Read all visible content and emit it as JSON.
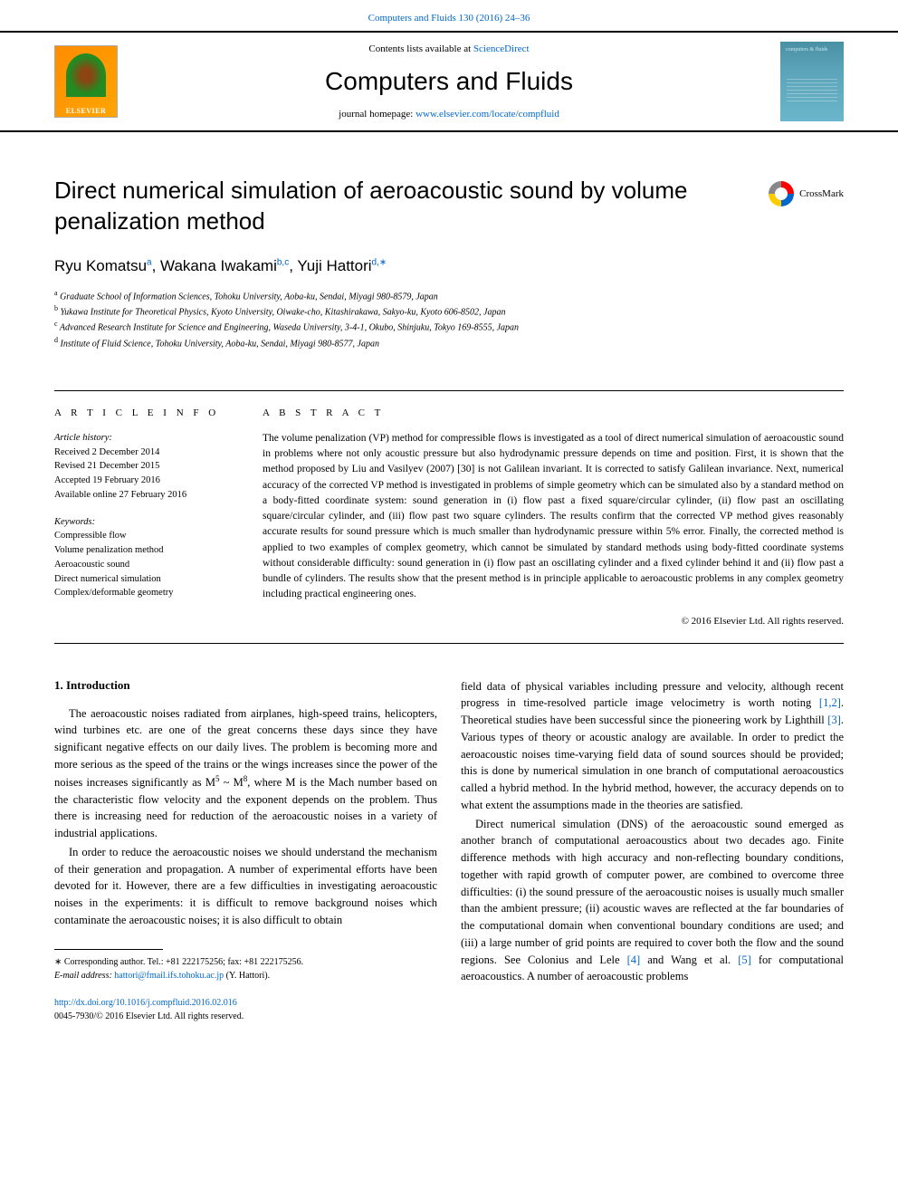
{
  "top_link": "Computers and Fluids 130 (2016) 24–36",
  "banner": {
    "elsevier": "ELSEVIER",
    "contents_prefix": "Contents lists available at ",
    "contents_link": "ScienceDirect",
    "journal_name": "Computers and Fluids",
    "homepage_prefix": "journal homepage: ",
    "homepage_link": "www.elsevier.com/locate/compfluid",
    "cover_text": "computers & fluids"
  },
  "article": {
    "title": "Direct numerical simulation of aeroacoustic sound by volume penalization method",
    "crossmark": "CrossMark",
    "authors_html": "Ryu Komatsu",
    "author1": "Ryu Komatsu",
    "author1_sup": "a",
    "author2": ", Wakana Iwakami",
    "author2_sup": "b,c",
    "author3": ", Yuji Hattori",
    "author3_sup": "d,∗",
    "affiliations": {
      "a": "Graduate School of Information Sciences, Tohoku University, Aoba-ku, Sendai, Miyagi 980-8579, Japan",
      "b": "Yukawa Institute for Theoretical Physics, Kyoto University, Oiwake-cho, Kitashirakawa, Sakyo-ku, Kyoto 606-8502, Japan",
      "c": "Advanced Research Institute for Science and Engineering, Waseda University, 3-4-1, Okubo, Shinjuku, Tokyo 169-8555, Japan",
      "d": "Institute of Fluid Science, Tohoku University, Aoba-ku, Sendai, Miyagi 980-8577, Japan"
    }
  },
  "info": {
    "heading": "A R T I C L E   I N F O",
    "history_label": "Article history:",
    "received": "Received 2 December 2014",
    "revised": "Revised 21 December 2015",
    "accepted": "Accepted 19 February 2016",
    "online": "Available online 27 February 2016",
    "keywords_label": "Keywords:",
    "kw1": "Compressible flow",
    "kw2": "Volume penalization method",
    "kw3": "Aeroacoustic sound",
    "kw4": "Direct numerical simulation",
    "kw5": "Complex/deformable geometry"
  },
  "abstract": {
    "heading": "A B S T R A C T",
    "text": "The volume penalization (VP) method for compressible flows is investigated as a tool of direct numerical simulation of aeroacoustic sound in problems where not only acoustic pressure but also hydrodynamic pressure depends on time and position. First, it is shown that the method proposed by Liu and Vasilyev (2007) [30] is not Galilean invariant. It is corrected to satisfy Galilean invariance. Next, numerical accuracy of the corrected VP method is investigated in problems of simple geometry which can be simulated also by a standard method on a body-fitted coordinate system: sound generation in (i) flow past a fixed square/circular cylinder, (ii) flow past an oscillating square/circular cylinder, and (iii) flow past two square cylinders. The results confirm that the corrected VP method gives reasonably accurate results for sound pressure which is much smaller than hydrodynamic pressure within 5% error. Finally, the corrected method is applied to two examples of complex geometry, which cannot be simulated by standard methods using body-fitted coordinate systems without considerable difficulty: sound generation in (i) flow past an oscillating cylinder and a fixed cylinder behind it and (ii) flow past a bundle of cylinders. The results show that the present method is in principle applicable to aeroacoustic problems in any complex geometry including practical engineering ones.",
    "copyright": "© 2016 Elsevier Ltd. All rights reserved."
  },
  "body": {
    "sec_title": "1. Introduction",
    "left_p1": "The aeroacoustic noises radiated from airplanes, high-speed trains, helicopters, wind turbines etc. are one of the great concerns these days since they have significant negative effects on our daily lives. The problem is becoming more and more serious as the speed of the trains or the wings increases since the power of the noises increases significantly as M",
    "left_p1_sup1": "5",
    "left_p1_mid": " ~ M",
    "left_p1_sup2": "8",
    "left_p1_end": ", where M is the Mach number based on the characteristic flow velocity and the exponent depends on the problem. Thus there is increasing need for reduction of the aeroacoustic noises in a variety of industrial applications.",
    "left_p2": "In order to reduce the aeroacoustic noises we should understand the mechanism of their generation and propagation. A number of experimental efforts have been devoted for it. However, there are a few difficulties in investigating aeroacoustic noises in the experiments: it is difficult to remove background noises which contaminate the aeroacoustic noises; it is also difficult to obtain",
    "right_p1_a": "field data of physical variables including pressure and velocity, although recent progress in time-resolved particle image velocimetry is worth noting ",
    "right_p1_ref1": "[1,2]",
    "right_p1_b": ". Theoretical studies have been successful since the pioneering work by Lighthill ",
    "right_p1_ref2": "[3]",
    "right_p1_c": ". Various types of theory or acoustic analogy are available. In order to predict the aeroacoustic noises time-varying field data of sound sources should be provided; this is done by numerical simulation in one branch of computational aeroacoustics called a hybrid method. In the hybrid method, however, the accuracy depends on to what extent the assumptions made in the theories are satisfied.",
    "right_p2_a": "Direct numerical simulation (DNS) of the aeroacoustic sound emerged as another branch of computational aeroacoustics about two decades ago. Finite difference methods with high accuracy and non-reflecting boundary conditions, together with rapid growth of computer power, are combined to overcome three difficulties: (i) the sound pressure of the aeroacoustic noises is usually much smaller than the ambient pressure; (ii) acoustic waves are reflected at the far boundaries of the computational domain when conventional boundary conditions are used; and (iii) a large number of grid points are required to cover both the flow and the sound regions. See Colonius and Lele ",
    "right_p2_ref1": "[4]",
    "right_p2_b": " and Wang et al. ",
    "right_p2_ref2": "[5]",
    "right_p2_c": " for computational aeroacoustics. A number of aeroacoustic problems"
  },
  "footer": {
    "corresponding": "∗ Corresponding author. Tel.: +81 222175256; fax: +81 222175256.",
    "email_label": "E-mail address: ",
    "email": "hattori@fmail.ifs.tohoku.ac.jp",
    "email_who": " (Y. Hattori).",
    "doi": "http://dx.doi.org/10.1016/j.compfluid.2016.02.016",
    "issn": "0045-7930/© 2016 Elsevier Ltd. All rights reserved."
  }
}
